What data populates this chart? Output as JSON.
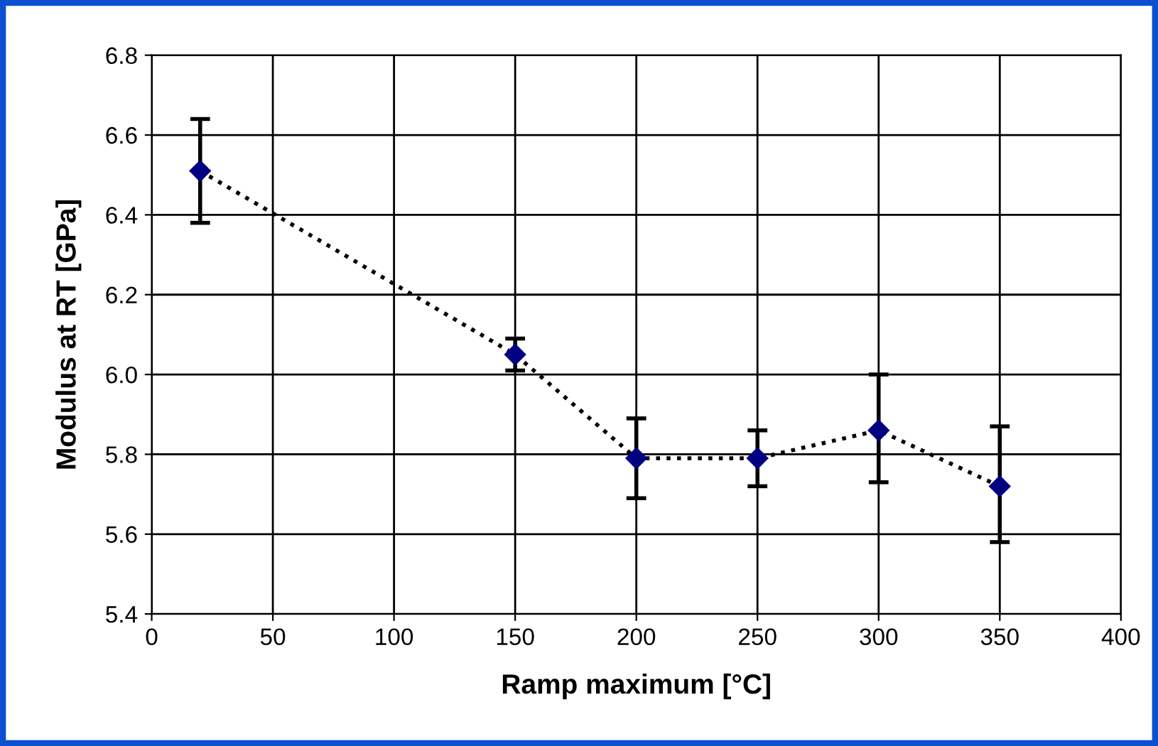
{
  "chart_data": {
    "type": "line",
    "xlabel": "Ramp maximum [°C]",
    "ylabel": "Modulus at RT [GPa]",
    "x": [
      20,
      150,
      200,
      250,
      300,
      350
    ],
    "series": [
      {
        "color": "#000080",
        "values": [
          6.51,
          6.05,
          5.79,
          5.79,
          5.86,
          5.72
        ],
        "errors": [
          [
            6.38,
            6.64
          ],
          [
            6.01,
            6.09
          ],
          [
            5.69,
            5.89
          ],
          [
            5.72,
            5.86
          ],
          [
            5.73,
            6.0
          ],
          [
            5.58,
            5.87
          ]
        ]
      }
    ],
    "xlim": [
      0,
      400
    ],
    "xticks": [
      0,
      50,
      100,
      150,
      200,
      250,
      300,
      350,
      400
    ],
    "ylim": [
      5.4,
      6.8
    ],
    "yticks": [
      {
        "value": 5.4,
        "label": "5.4"
      },
      {
        "value": 5.6,
        "label": "5.6"
      },
      {
        "value": 5.8,
        "label": "5.8"
      },
      {
        "value": 6.0,
        "label": "6.0"
      },
      {
        "value": 6.2,
        "label": "6.2"
      },
      {
        "value": 6.4,
        "label": "6.4"
      },
      {
        "value": 6.6,
        "label": "6.6"
      },
      {
        "value": 6.8,
        "label": "6.8"
      }
    ],
    "grid": true,
    "marker": "diamond",
    "line_style": "dotted",
    "legend": false
  }
}
